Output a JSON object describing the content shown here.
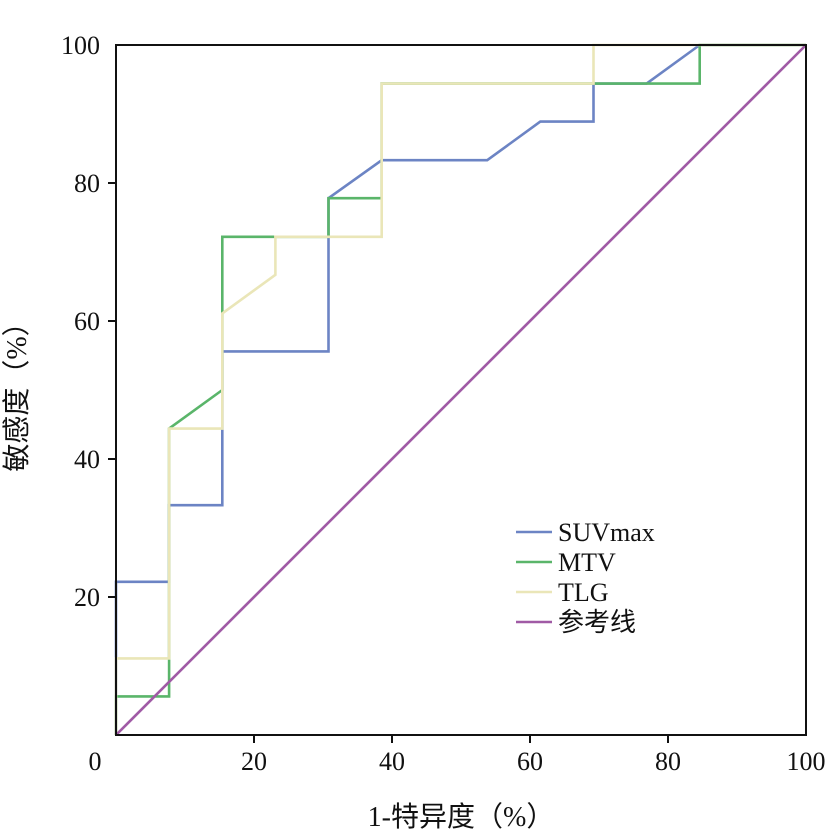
{
  "chart_data": {
    "type": "line",
    "title": "",
    "xlabel": "1-特异度（%）",
    "ylabel": "敏感度（%）",
    "xlim": [
      0,
      100
    ],
    "ylim": [
      0,
      100
    ],
    "x_ticks": [
      0,
      20,
      40,
      60,
      80,
      100
    ],
    "y_ticks": [
      20,
      40,
      60,
      80,
      100
    ],
    "x_tick_labels": [
      "0",
      "20",
      "40",
      "60",
      "80",
      "100"
    ],
    "y_tick_labels": [
      "20",
      "40",
      "60",
      "80",
      "100"
    ],
    "grid": false,
    "legend_position": "lower-right",
    "series": [
      {
        "name": "SUVmax",
        "color": "#6c84c4",
        "points": [
          [
            0,
            0
          ],
          [
            0,
            22.2
          ],
          [
            7.7,
            22.2
          ],
          [
            7.7,
            33.3
          ],
          [
            15.4,
            33.3
          ],
          [
            15.4,
            55.6
          ],
          [
            30.8,
            55.6
          ],
          [
            30.8,
            77.8
          ],
          [
            38.5,
            83.3
          ],
          [
            53.8,
            83.3
          ],
          [
            61.5,
            88.9
          ],
          [
            69.2,
            88.9
          ],
          [
            69.2,
            94.4
          ],
          [
            76.9,
            94.4
          ],
          [
            84.6,
            100
          ],
          [
            100,
            100
          ]
        ]
      },
      {
        "name": "MTV",
        "color": "#5ab56a",
        "points": [
          [
            0,
            0
          ],
          [
            0,
            5.6
          ],
          [
            7.7,
            5.6
          ],
          [
            7.7,
            44.4
          ],
          [
            15.4,
            50
          ],
          [
            15.4,
            72.2
          ],
          [
            30.8,
            72.2
          ],
          [
            30.8,
            77.8
          ],
          [
            38.5,
            77.8
          ],
          [
            38.5,
            94.4
          ],
          [
            76.9,
            94.4
          ],
          [
            84.6,
            94.4
          ],
          [
            84.6,
            100
          ],
          [
            100,
            100
          ]
        ]
      },
      {
        "name": "TLG",
        "color": "#eae6b8",
        "points": [
          [
            0,
            0
          ],
          [
            0,
            11.1
          ],
          [
            7.7,
            11.1
          ],
          [
            7.7,
            44.4
          ],
          [
            15.4,
            44.4
          ],
          [
            15.4,
            61.1
          ],
          [
            23.1,
            66.7
          ],
          [
            23.1,
            72.2
          ],
          [
            38.5,
            72.2
          ],
          [
            38.5,
            94.4
          ],
          [
            69.2,
            94.4
          ],
          [
            69.2,
            100
          ],
          [
            100,
            100
          ]
        ]
      },
      {
        "name": "参考线",
        "color": "#a05aa5",
        "points": [
          [
            0,
            0
          ],
          [
            100,
            100
          ]
        ]
      }
    ]
  }
}
